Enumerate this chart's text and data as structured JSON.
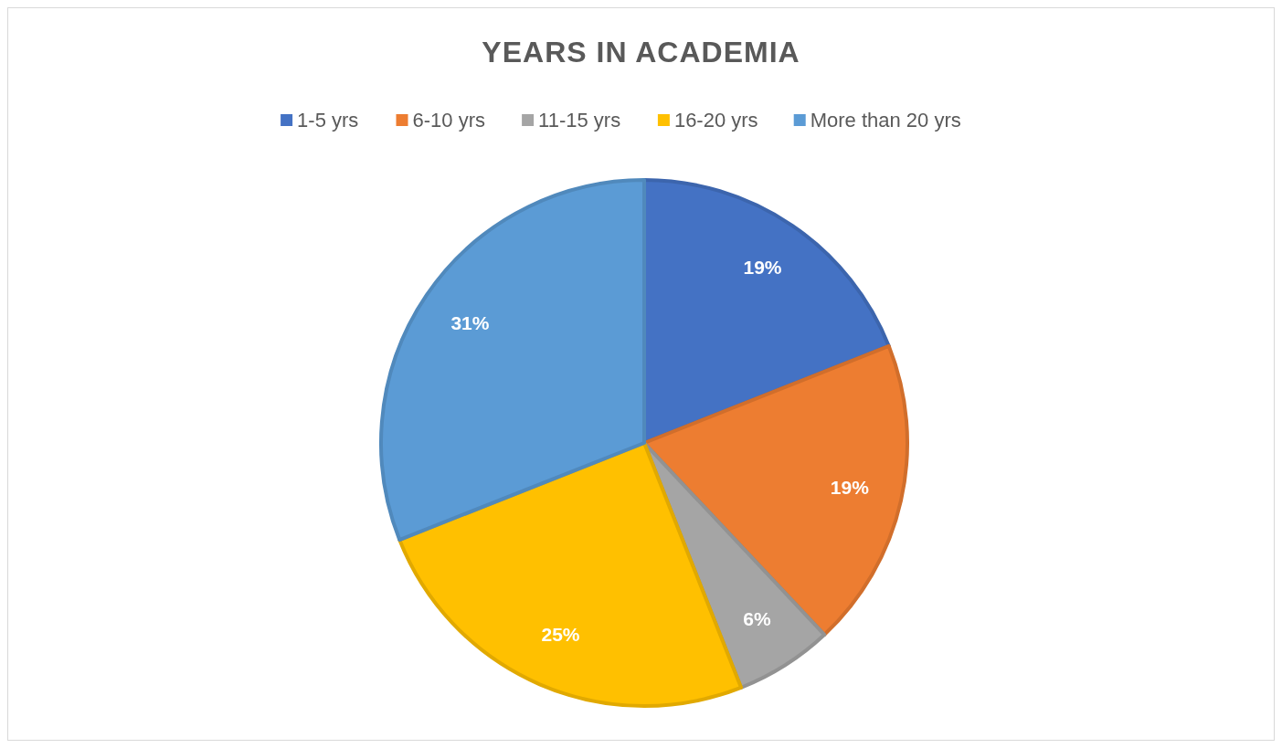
{
  "chart_data": {
    "type": "pie",
    "title": "YEARS IN ACADEMIA",
    "categories": [
      "1-5 yrs",
      "6-10 yrs",
      "11-15 yrs",
      "16-20 yrs",
      "More than 20 yrs"
    ],
    "values": [
      19,
      19,
      6,
      25,
      31
    ],
    "colors": [
      "#4472c4",
      "#ed7d31",
      "#a5a5a5",
      "#ffc000",
      "#5b9bd5"
    ],
    "value_labels": [
      "19%",
      "19%",
      "6%",
      "25%",
      "31%"
    ],
    "legend": "top"
  }
}
